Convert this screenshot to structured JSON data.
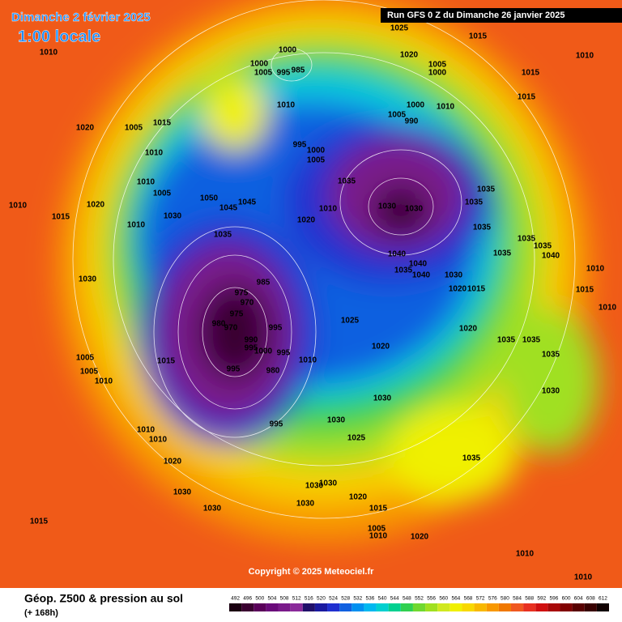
{
  "map": {
    "title": "Dimanche 2 février 2025",
    "subtitle": "1:00 locale",
    "run": "Run GFS 0 Z du Dimanche 26 janvier 2025",
    "copyright": "Copyright © 2025 Meteociel.fr",
    "legend_title": "Géop. Z500 & pression au sol",
    "lead": "(+ 168h)",
    "isobar_labels": [
      1010,
      1000,
      1000,
      1005,
      995,
      985,
      1025,
      1015,
      1020,
      1005,
      1000,
      1010,
      1015,
      1015,
      1010,
      1000,
      1005,
      990,
      1010,
      1015,
      1005,
      1020,
      1010,
      995,
      1000,
      1005,
      1035,
      1010,
      1005,
      1010,
      1020,
      1050,
      1045,
      1045,
      1030,
      1015,
      1010,
      1020,
      1010,
      1030,
      1030,
      1035,
      1035,
      1035,
      1035,
      1040,
      1040,
      1035,
      1040,
      1030,
      1020,
      1015,
      1035,
      1035,
      1040,
      1035,
      1010,
      1015,
      1010,
      1030,
      985,
      975,
      970,
      975,
      980,
      970,
      995,
      1025,
      1020,
      1035,
      1035,
      1035,
      1015,
      995,
      990,
      995,
      1000,
      1010,
      1020,
      1005,
      1005,
      1010,
      995,
      980,
      1030,
      1030,
      1030,
      995,
      1010,
      1010,
      1025,
      1035,
      1020,
      1030,
      1030,
      1030,
      1030,
      1020,
      1015,
      1030,
      1005,
      1010,
      1020,
      1015,
      1010,
      1010
    ],
    "colorbar": {
      "ticks": [
        492,
        496,
        500,
        504,
        508,
        512,
        516,
        520,
        524,
        528,
        532,
        536,
        540,
        544,
        548,
        552,
        556,
        560,
        564,
        568,
        572,
        576,
        580,
        584,
        588,
        592,
        596,
        600,
        604,
        608,
        612
      ],
      "colors": [
        "#1a0010",
        "#3a0030",
        "#5a005a",
        "#6a0a7a",
        "#7a1a8a",
        "#8a2a9a",
        "#20106a",
        "#1a1aa0",
        "#2030d0",
        "#1060e0",
        "#0090f0",
        "#00b8f0",
        "#00d0d0",
        "#00d090",
        "#30d050",
        "#70d830",
        "#a0e020",
        "#d0e820",
        "#f0f000",
        "#f8d800",
        "#f8b800",
        "#f89800",
        "#f07800",
        "#f05820",
        "#e83020",
        "#d01010",
        "#a80808",
        "#800000",
        "#580000",
        "#380000",
        "#100000"
      ]
    }
  }
}
